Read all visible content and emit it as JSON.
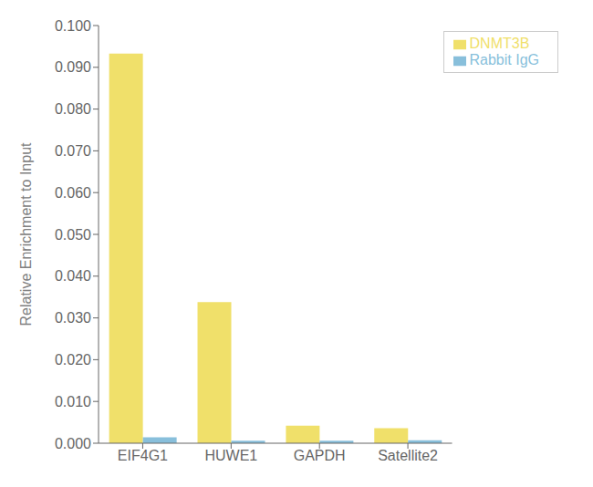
{
  "chart_data": {
    "type": "bar",
    "ylabel": "Relative Enrichment to Input",
    "categories": [
      "EIF4G1",
      "HUWE1",
      "GAPDH",
      "Satellite2"
    ],
    "series": [
      {
        "name": "DNMT3B",
        "color": "#F0E06A",
        "values": [
          0.0933,
          0.0338,
          0.0042,
          0.0036
        ]
      },
      {
        "name": "Rabbit IgG",
        "color": "#88BFDB",
        "values": [
          0.0014,
          0.0006,
          0.0006,
          0.0007
        ]
      }
    ],
    "ylim": [
      0,
      0.1
    ],
    "yticks": [
      {
        "value": 0.0,
        "label": "0.000"
      },
      {
        "value": 0.01,
        "label": "0.010"
      },
      {
        "value": 0.02,
        "label": "0.020"
      },
      {
        "value": 0.03,
        "label": "0.030"
      },
      {
        "value": 0.04,
        "label": "0.040"
      },
      {
        "value": 0.05,
        "label": "0.050"
      },
      {
        "value": 0.06,
        "label": "0.060"
      },
      {
        "value": 0.07,
        "label": "0.070"
      },
      {
        "value": 0.08,
        "label": "0.080"
      },
      {
        "value": 0.09,
        "label": "0.090"
      },
      {
        "value": 0.1,
        "label": "0.100"
      }
    ],
    "grid": false,
    "legend": "upper right"
  }
}
